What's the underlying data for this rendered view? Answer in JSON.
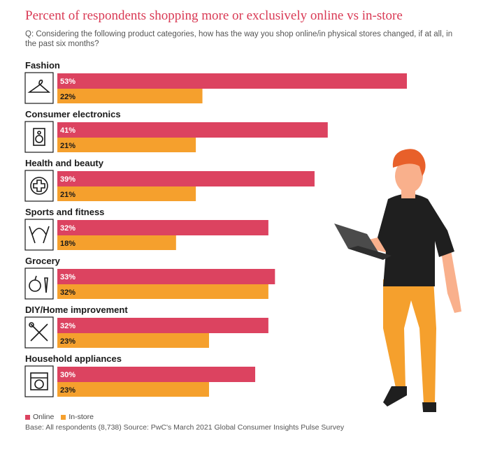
{
  "header": {
    "title": "Percent of respondents shopping more or exclusively online vs in-store",
    "question": "Q: Considering the following product categories, how has the way you shop online/in physical stores changed, if at all, in the past six months?"
  },
  "colors": {
    "online": "#dc4360",
    "instore": "#f5a02d"
  },
  "chart_data": {
    "type": "bar",
    "orientation": "horizontal",
    "categories": [
      "Fashion",
      "Consumer electronics",
      "Health and beauty",
      "Sports and fitness",
      "Grocery",
      "DIY/Home improvement",
      "Household appliances"
    ],
    "icons": [
      "hanger-icon",
      "speaker-icon",
      "health-cross-icon",
      "jump-rope-icon",
      "fruit-vegetable-icon",
      "tools-icon",
      "washing-machine-icon"
    ],
    "series": [
      {
        "name": "Online",
        "values": [
          53,
          41,
          39,
          32,
          33,
          32,
          30
        ],
        "labels": [
          "53%",
          "41%",
          "39%",
          "32%",
          "33%",
          "32%",
          "30%"
        ]
      },
      {
        "name": "In-store",
        "values": [
          22,
          21,
          21,
          18,
          32,
          23,
          23
        ],
        "labels": [
          "22%",
          "21%",
          "21%",
          "18%",
          "32%",
          "23%",
          "23%"
        ]
      }
    ],
    "xlim": [
      0,
      53
    ],
    "legend": "bottom-left"
  },
  "footer": {
    "legend_online": "Online",
    "legend_instore": "In-store",
    "base": "Base: All respondents (8,738)  Source: PwC's March 2021 Global Consumer Insights Pulse Survey"
  },
  "illustration": {
    "icon": "person-with-laptop-icon"
  }
}
